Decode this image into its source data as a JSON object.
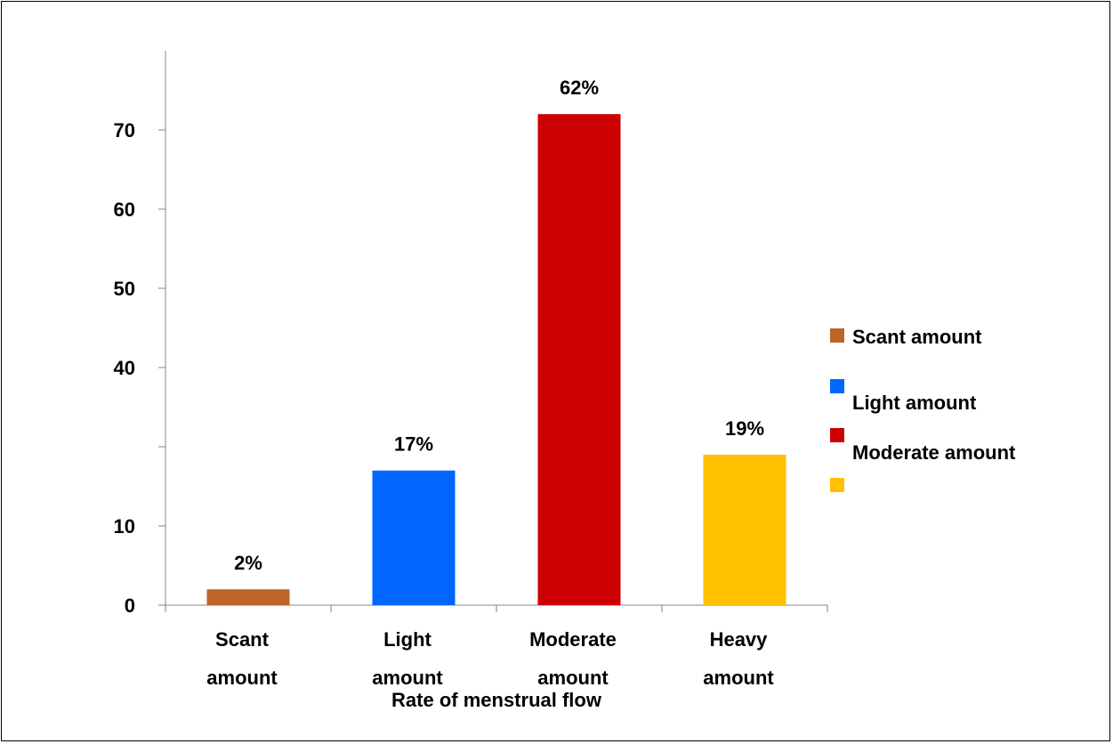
{
  "chart_data": {
    "type": "bar",
    "xlabel": "Rate of menstrual flow",
    "ylabel": "",
    "ylim": [
      0,
      70
    ],
    "grid": false,
    "y_tick_labels": [
      "0",
      "10",
      "",
      "40",
      "50",
      "60",
      "70"
    ],
    "categories": [
      {
        "line1": "Scant",
        "line2": "amount"
      },
      {
        "line1": "Light",
        "line2": "amount"
      },
      {
        "line1": "Moderate",
        "line2": "amount"
      },
      {
        "line1": "Heavy",
        "line2": "amount"
      }
    ],
    "values": [
      2,
      17,
      62,
      19
    ],
    "data_labels": [
      "2%",
      "17%",
      "62%",
      "19%"
    ],
    "colors": [
      "#BE6428",
      "#0066FF",
      "#CC0000",
      "#FFC000"
    ],
    "legend_placement": "right",
    "legend": [
      {
        "label": "Scant amount",
        "color": "#BE6428"
      },
      {
        "label": "Light amount",
        "color": "#0066FF"
      },
      {
        "label": "Moderate amount",
        "color": "#CC0000"
      },
      {
        "label": "",
        "color": "#FFC000"
      }
    ]
  }
}
